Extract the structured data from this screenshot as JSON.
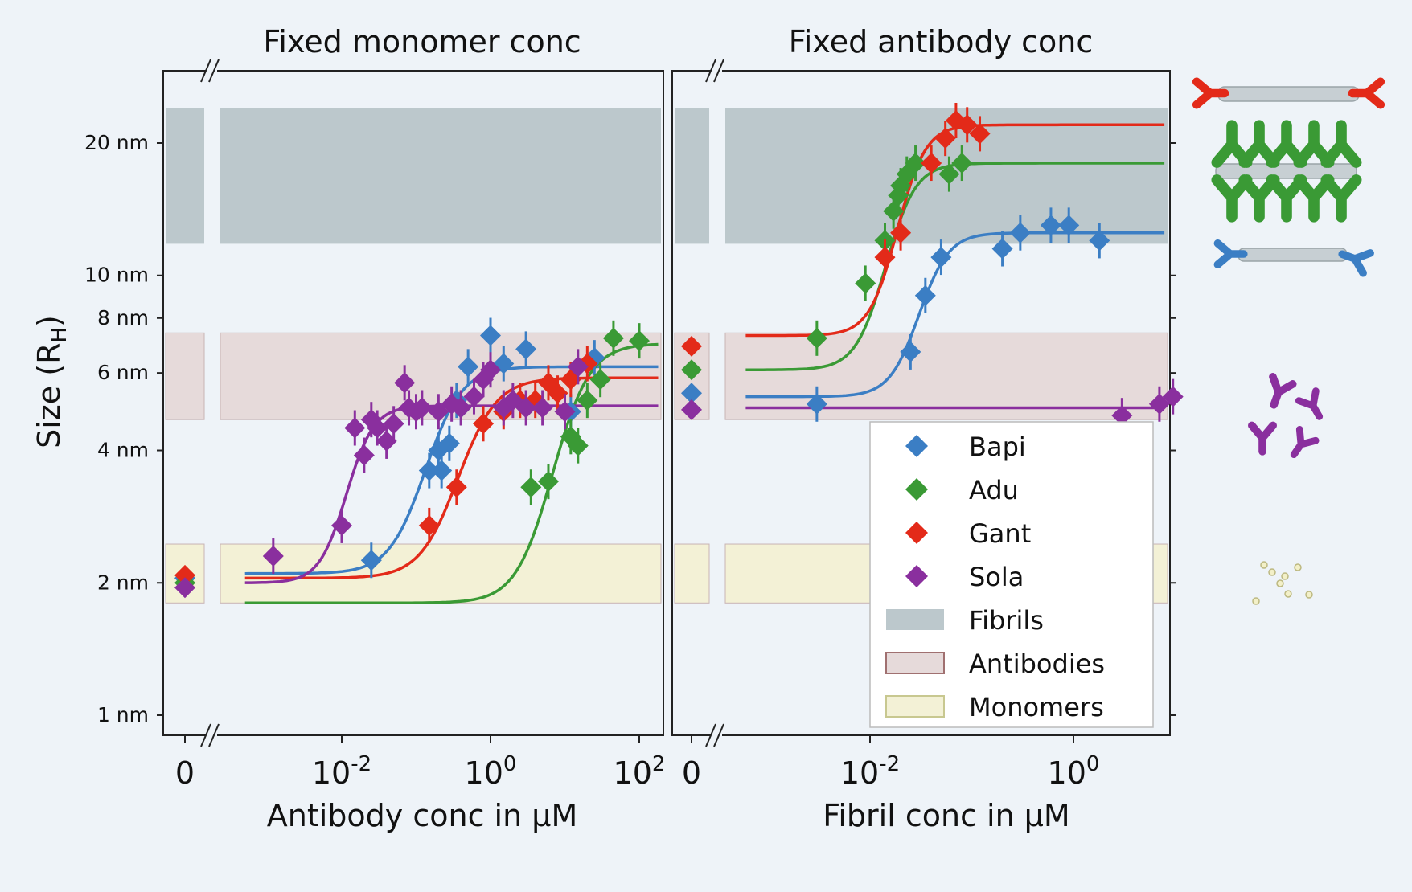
{
  "chart_data": [
    {
      "type": "scatter",
      "title": "Fixed monomer conc",
      "xlabel": "Antibody conc in μM",
      "ylabel": "Size (R_H)",
      "x_scale": "log",
      "x_zero_break": true,
      "xlim": [
        0.0005,
        200
      ],
      "ylim_nm": [
        0.9,
        32
      ],
      "y_scale": "log",
      "x_ticks": [
        {
          "label": "0",
          "zero": true
        },
        {
          "base": "10",
          "exp": "-2",
          "value": 0.01
        },
        {
          "base": "10",
          "exp": "0",
          "value": 1
        },
        {
          "base": "10",
          "exp": "2",
          "value": 100
        }
      ],
      "y_ticks": [
        {
          "label": "1 nm",
          "value": 1
        },
        {
          "label": "2 nm",
          "value": 2
        },
        {
          "label": "4 nm",
          "value": 4
        },
        {
          "label": "6 nm",
          "value": 6
        },
        {
          "label": "8 nm",
          "value": 8
        },
        {
          "label": "10 nm",
          "value": 10
        },
        {
          "label": "20 nm",
          "value": 20
        }
      ],
      "bands": [
        {
          "name": "Fibrils",
          "ymin": 11.8,
          "ymax": 24
        },
        {
          "name": "Antibodies",
          "ymin": 4.7,
          "ymax": 7.4
        },
        {
          "name": "Monomers",
          "ymin": 1.8,
          "ymax": 2.45
        }
      ],
      "series": [
        {
          "name": "Bapi",
          "zero_y": 2.05,
          "x": [
            0.025,
            0.15,
            0.2,
            0.22,
            0.28,
            0.35,
            0.4,
            0.5,
            1.0,
            1.5,
            3.0,
            12,
            25
          ],
          "y": [
            2.25,
            3.6,
            4.0,
            3.6,
            4.15,
            5.2,
            5.0,
            6.2,
            7.3,
            6.3,
            6.8,
            4.9,
            6.5
          ],
          "fit": {
            "lo": 2.1,
            "hi": 6.2,
            "x0": 0.18,
            "n": 1.8
          }
        },
        {
          "name": "Adu",
          "zero_y": 2.0,
          "x": [
            3.5,
            6.0,
            12,
            15,
            20,
            30,
            45,
            100
          ],
          "y": [
            3.3,
            3.4,
            4.3,
            4.1,
            5.2,
            5.8,
            7.2,
            7.1
          ],
          "fit": {
            "lo": 1.8,
            "hi": 7.0,
            "x0": 10,
            "n": 1.8
          }
        },
        {
          "name": "Gant",
          "zero_y": 2.08,
          "x": [
            0.15,
            0.35,
            0.8,
            1.5,
            2.5,
            4.0,
            6.0,
            8.0,
            12,
            20
          ],
          "y": [
            2.7,
            3.3,
            4.6,
            4.9,
            5.2,
            5.2,
            5.7,
            5.4,
            5.8,
            6.3
          ],
          "fit": {
            "lo": 2.05,
            "hi": 5.85,
            "x0": 0.5,
            "n": 1.7
          }
        },
        {
          "name": "Sola",
          "zero_y": 1.95,
          "x": [
            0.0012,
            0.01,
            0.015,
            0.02,
            0.025,
            0.03,
            0.04,
            0.05,
            0.07,
            0.08,
            0.1,
            0.12,
            0.2,
            0.3,
            0.4,
            0.6,
            0.8,
            1.0,
            1.5,
            2.0,
            3.0,
            5.0,
            10,
            15
          ],
          "y": [
            2.3,
            2.7,
            4.5,
            3.9,
            4.7,
            4.5,
            4.2,
            4.6,
            5.7,
            5.0,
            4.9,
            5.0,
            4.9,
            5.1,
            5.0,
            5.3,
            5.8,
            6.1,
            5.0,
            5.2,
            5.0,
            5.0,
            4.9,
            6.2
          ],
          "fit": {
            "lo": 2.0,
            "hi": 5.05,
            "x0": 0.014,
            "n": 2.4
          }
        }
      ]
    },
    {
      "type": "scatter",
      "title": "Fixed antibody conc",
      "xlabel": "Fibril conc in μM",
      "x_scale": "log",
      "x_zero_break": true,
      "xlim": [
        0.0006,
        10
      ],
      "x_ticks": [
        {
          "label": "0",
          "zero": true
        },
        {
          "base": "10",
          "exp": "-2",
          "value": 0.01
        },
        {
          "base": "10",
          "exp": "0",
          "value": 1
        }
      ],
      "series": [
        {
          "name": "Bapi",
          "zero_y": 5.4,
          "x": [
            0.003,
            0.025,
            0.035,
            0.05,
            0.2,
            0.3,
            0.6,
            0.9,
            1.8
          ],
          "y": [
            5.1,
            6.7,
            9.0,
            11.0,
            11.5,
            12.5,
            13.0,
            13.0,
            12.0
          ],
          "fit": {
            "lo": 5.3,
            "hi": 12.5,
            "x0": 0.035,
            "n": 3.0
          }
        },
        {
          "name": "Adu",
          "zero_y": 6.1,
          "x": [
            0.003,
            0.009,
            0.014,
            0.017,
            0.019,
            0.02,
            0.023,
            0.028,
            0.06,
            0.08
          ],
          "y": [
            7.2,
            9.6,
            12.0,
            14.0,
            15.2,
            16.0,
            17.0,
            18.0,
            17.0,
            18.0
          ],
          "fit": {
            "lo": 6.1,
            "hi": 18.0,
            "x0": 0.017,
            "n": 3.0
          }
        },
        {
          "name": "Gant",
          "zero_y": 6.9,
          "x": [
            0.014,
            0.02,
            0.04,
            0.055,
            0.07,
            0.09,
            0.12
          ],
          "y": [
            11.0,
            12.5,
            18.0,
            20.5,
            22.5,
            22.0,
            21.0
          ],
          "fit": {
            "lo": 7.3,
            "hi": 22.0,
            "x0": 0.022,
            "n": 3.2
          }
        },
        {
          "name": "Sola",
          "zero_y": 4.95,
          "x": [
            3.0,
            7.0,
            9.5
          ],
          "y": [
            4.8,
            5.1,
            5.3
          ],
          "fit": {
            "lo": 5.0,
            "hi": 5.0,
            "x0": 1,
            "n": 1
          }
        }
      ],
      "legend": {
        "placement": "lower-right",
        "entries": [
          {
            "label": "Bapi",
            "kind": "marker"
          },
          {
            "label": "Adu",
            "kind": "marker"
          },
          {
            "label": "Gant",
            "kind": "marker"
          },
          {
            "label": "Sola",
            "kind": "marker"
          },
          {
            "label": "Fibrils",
            "kind": "patch"
          },
          {
            "label": "Antibodies",
            "kind": "patch"
          },
          {
            "label": "Monomers",
            "kind": "patch"
          }
        ]
      }
    }
  ],
  "colors": {
    "Bapi": "#3b7ec4",
    "Adu": "#3a9a35",
    "Gant": "#e32a19",
    "Sola": "#8a2f9e",
    "Fibrils": "#bcc8cc",
    "Antibodies": "#e6dada",
    "Monomers": "#f3f1d6",
    "band_border": "#c8b4b4",
    "axis": "#222222"
  },
  "illustrations": [
    {
      "name": "fibril-with-gant-antibodies-illustration"
    },
    {
      "name": "fibril-with-adu-antibodies-illustration"
    },
    {
      "name": "fibril-with-bapi-antibodies-illustration"
    },
    {
      "name": "free-antibodies-illustration"
    },
    {
      "name": "free-monomers-illustration"
    }
  ]
}
